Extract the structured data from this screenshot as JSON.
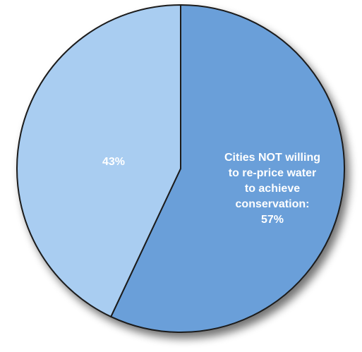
{
  "chart_data": {
    "type": "pie",
    "start": "12 o'clock",
    "direction": "clockwise",
    "slices": [
      {
        "label_lines": [
          "Cities NOT willing",
          "to re-price water",
          "to achieve",
          "conservation:",
          "57%"
        ],
        "value": 57,
        "color": "#6a9fd9"
      },
      {
        "label_lines": [
          "43%"
        ],
        "value": 43,
        "color": "#a9cdf1"
      }
    ]
  }
}
